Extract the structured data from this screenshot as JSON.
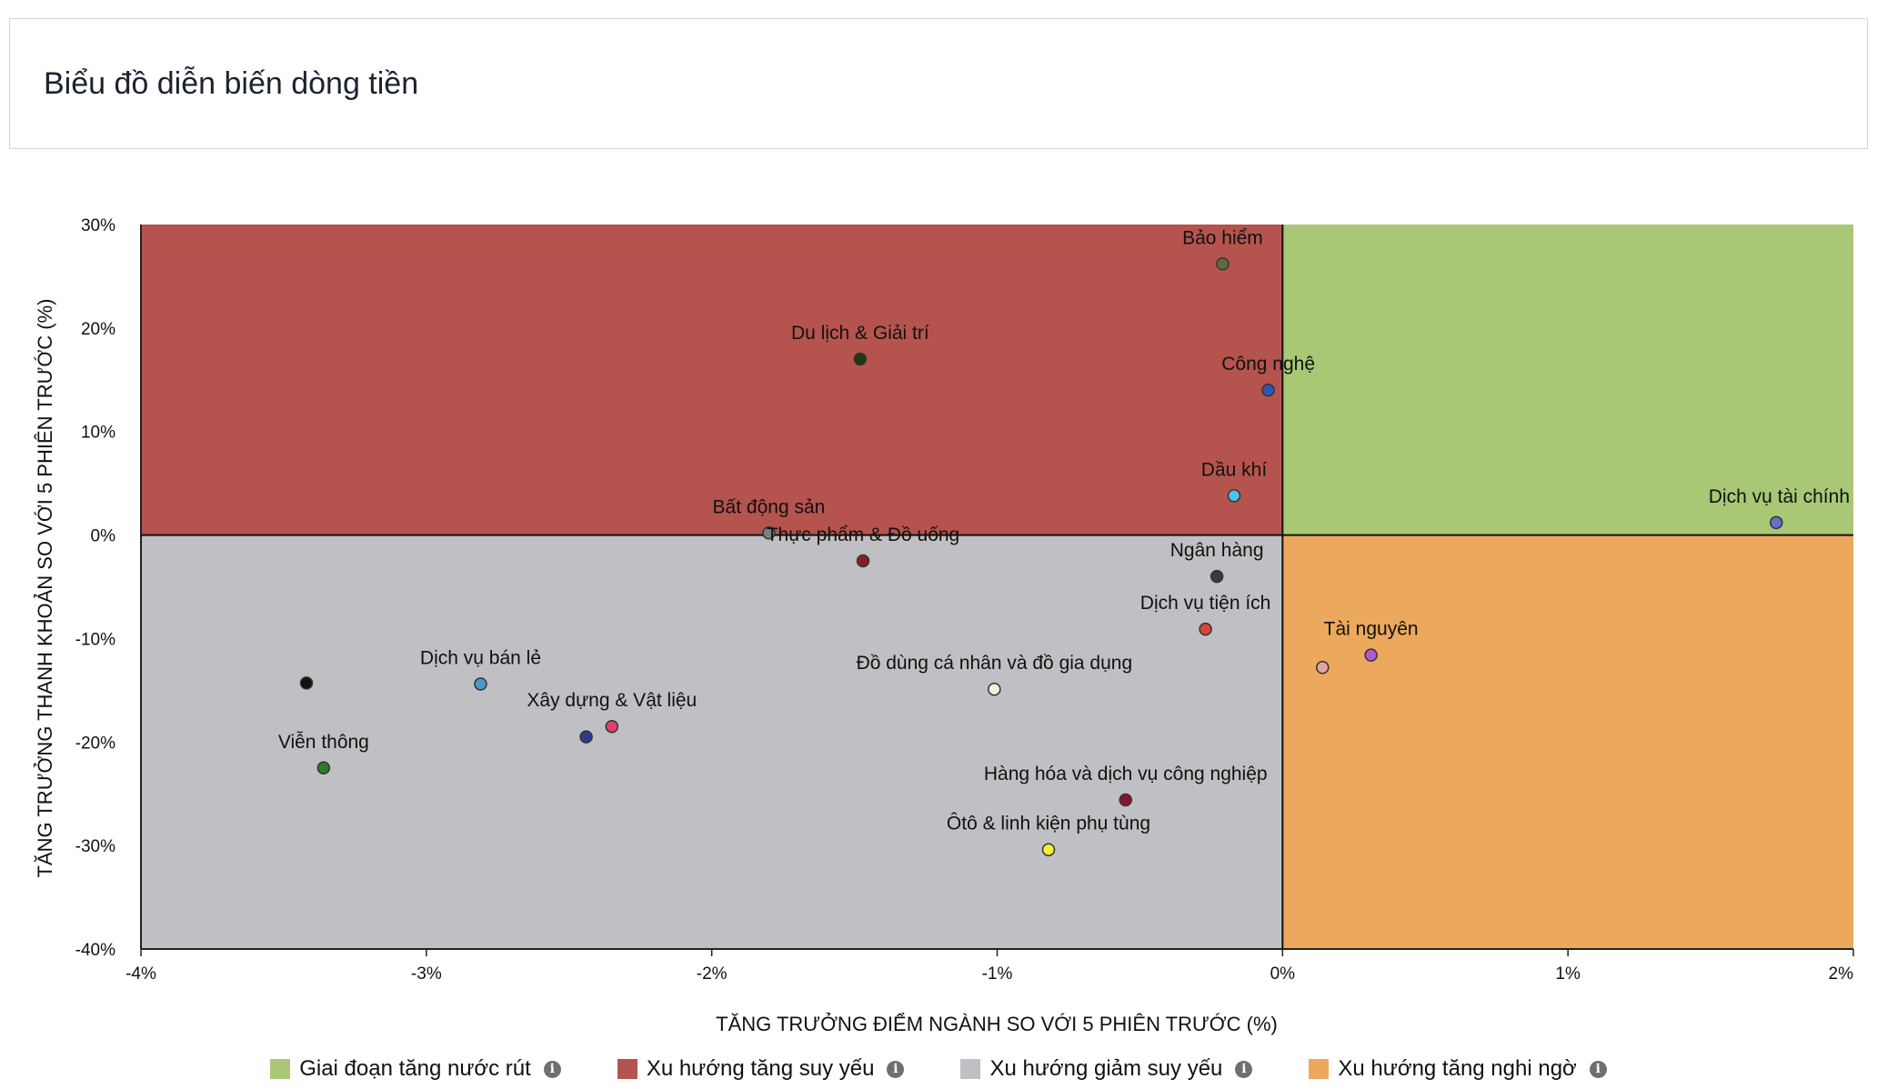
{
  "header": {
    "title": "Biểu đồ diễn biến dòng tiền"
  },
  "colors": {
    "green": "#a9c774",
    "red": "#b5544e",
    "gray": "#c0c0c4",
    "orange": "#eca85c"
  },
  "legend": [
    {
      "label": "Giai đoạn tăng nước rút",
      "color": "#a9c774",
      "icon": "info-icon"
    },
    {
      "label": "Xu hướng tăng suy yếu",
      "color": "#b5544e",
      "icon": "info-icon"
    },
    {
      "label": "Xu hướng giảm suy yếu",
      "color": "#c0c0c4",
      "icon": "info-icon"
    },
    {
      "label": "Xu hướng tăng nghi ngờ",
      "color": "#eca85c",
      "icon": "info-icon"
    }
  ],
  "chart_data": {
    "type": "scatter",
    "xlabel": "TĂNG TRƯỞNG ĐIỂM NGÀNH SO VỚI 5 PHIÊN TRƯỚC (%)",
    "ylabel": "TĂNG TRƯỞNG THANH KHOẢN SO VỚI 5 PHIÊN TRƯỚC (%)",
    "xlim": [
      -4,
      2
    ],
    "ylim": [
      -40,
      30
    ],
    "x_ticks": [
      -4,
      -3,
      -2,
      -1,
      0,
      1,
      2
    ],
    "x_tick_labels": [
      "-4%",
      "-3%",
      "-2%",
      "-1%",
      "0%",
      "1%",
      "2%"
    ],
    "y_ticks": [
      30,
      20,
      10,
      0,
      -10,
      -20,
      -30,
      -40
    ],
    "y_tick_labels": [
      "30%",
      "20%",
      "10%",
      "0%",
      "-10%",
      "-20%",
      "-30%",
      "-40%"
    ],
    "quadrants": [
      {
        "name": "Giai đoạn tăng nước rút",
        "x": [
          0,
          2
        ],
        "y": [
          0,
          30
        ],
        "color": "#a9c774"
      },
      {
        "name": "Xu hướng tăng suy yếu",
        "x": [
          -4,
          0
        ],
        "y": [
          0,
          30
        ],
        "color": "#b5544e"
      },
      {
        "name": "Xu hướng giảm suy yếu",
        "x": [
          -4,
          0
        ],
        "y": [
          -40,
          0
        ],
        "color": "#c0c0c4"
      },
      {
        "name": "Xu hướng tăng nghi ngờ",
        "x": [
          0,
          2
        ],
        "y": [
          -40,
          0
        ],
        "color": "#eca85c"
      }
    ],
    "points": [
      {
        "label": "Bảo hiểm",
        "x": -0.21,
        "y": 26.2,
        "color": "#5f6b3f"
      },
      {
        "label": "Du lịch & Giải trí",
        "x": -1.48,
        "y": 17.0,
        "color": "#1d3a14"
      },
      {
        "label": "Công nghệ",
        "x": -0.05,
        "y": 14.0,
        "color": "#2e56b3"
      },
      {
        "label": "Dầu khí",
        "x": -0.17,
        "y": 3.8,
        "color": "#4fc3e6"
      },
      {
        "label": "Dịch vụ tài chính",
        "x": 1.73,
        "y": 1.2,
        "color": "#6a6fc4"
      },
      {
        "label": "Bất động sản",
        "x": -1.8,
        "y": 0.2,
        "color": "#7a7f86"
      },
      {
        "label": "Thực phẩm & Đồ uống",
        "x": -1.47,
        "y": -2.5,
        "color": "#8a1e1e"
      },
      {
        "label": "Ngân hàng",
        "x": -0.23,
        "y": -4.0,
        "color": "#3a3a3a"
      },
      {
        "label": "Dịch vụ tiện ích",
        "x": -0.27,
        "y": -9.1,
        "color": "#d9443a"
      },
      {
        "label": "Tài nguyên",
        "x": 0.31,
        "y": -11.6,
        "color": "#b05ad6"
      },
      {
        "label": "",
        "x": 0.14,
        "y": -12.8,
        "color": "#e3a3a0"
      },
      {
        "label": "",
        "x": -3.42,
        "y": -14.3,
        "color": "#111111"
      },
      {
        "label": "Dịch vụ bán lẻ",
        "x": -2.81,
        "y": -14.4,
        "color": "#4c9ac9"
      },
      {
        "label": "Đồ dùng cá nhân và đồ gia dụng",
        "x": -1.01,
        "y": -14.9,
        "color": "#e6f5d8"
      },
      {
        "label": "Xây dựng & Vật liệu",
        "x": -2.35,
        "y": -18.5,
        "color": "#e0406b"
      },
      {
        "label": "",
        "x": -2.44,
        "y": -19.5,
        "color": "#2f3a8c"
      },
      {
        "label": "Viễn thông",
        "x": -3.36,
        "y": -22.5,
        "color": "#2e7a2a"
      },
      {
        "label": "Hàng hóa và dịch vụ công nghiệp",
        "x": -0.55,
        "y": -25.6,
        "color": "#8a1430"
      },
      {
        "label": "Ôtô & linh kiện phụ tùng",
        "x": -0.82,
        "y": -30.4,
        "color": "#f0ef3a"
      }
    ]
  }
}
